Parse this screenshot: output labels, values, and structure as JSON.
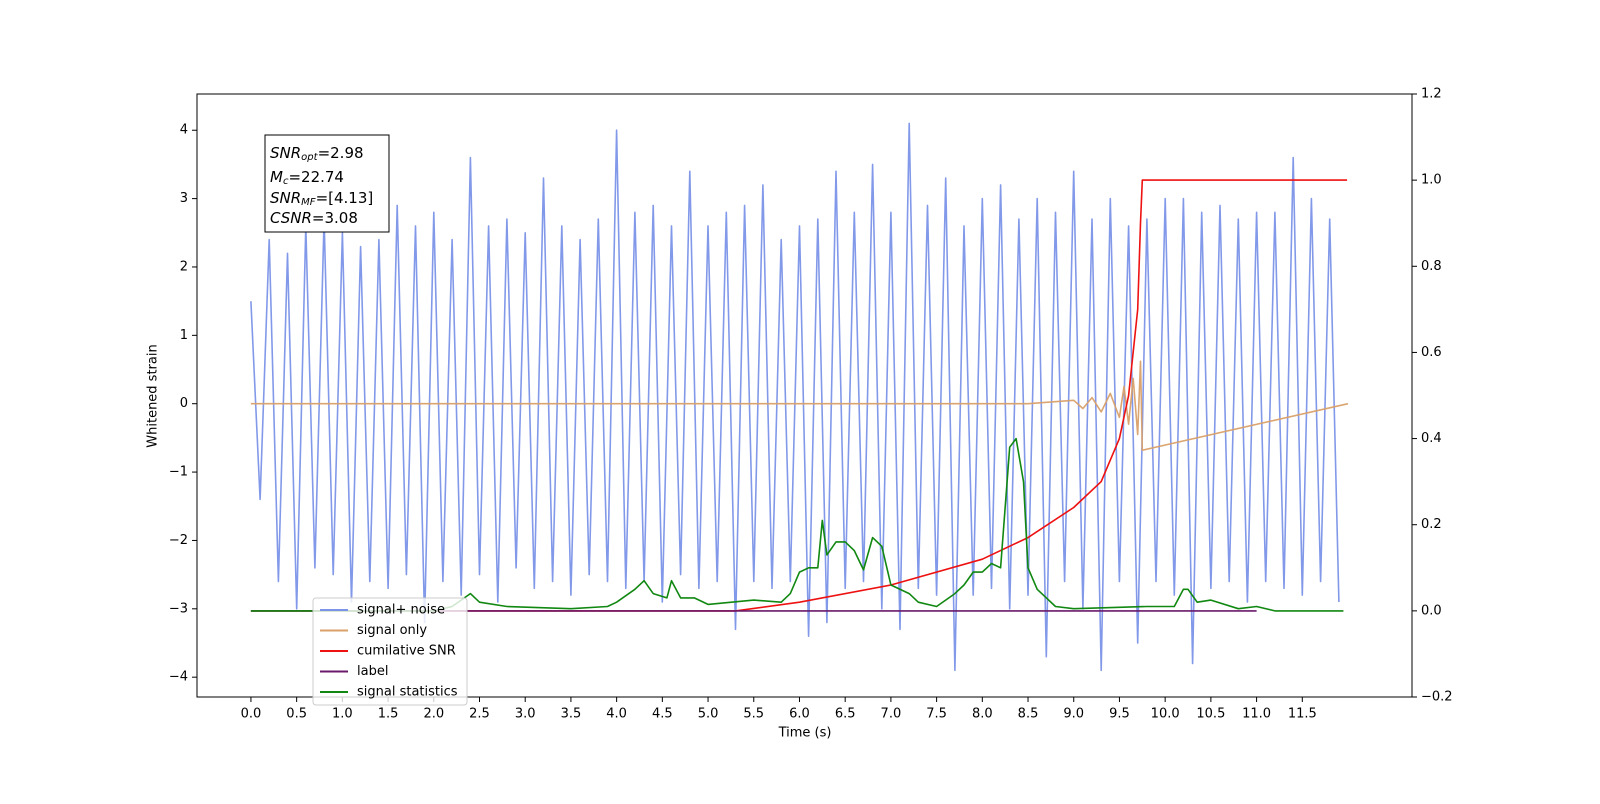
{
  "chart_data": {
    "type": "line",
    "xlabel": "Time (s)",
    "ylabel": "Whitened strain",
    "xlim": [
      -0.59,
      12.7
    ],
    "ylim": [
      -4.29,
      4.53
    ],
    "y2lim": [
      -0.2,
      1.2
    ],
    "xticks": [
      {
        "value": 0,
        "label": "0.0"
      },
      0.5,
      {
        "value": 1,
        "label": "1.0"
      },
      1.5,
      {
        "value": 2,
        "label": "2.0"
      },
      2.5,
      {
        "value": 3,
        "label": "3.0"
      },
      3.5,
      {
        "value": 4,
        "label": "4.0"
      },
      4.5,
      {
        "value": 5,
        "label": "5.0"
      },
      5.5,
      {
        "value": 6,
        "label": "6.0"
      },
      6.5,
      {
        "value": 7,
        "label": "7.0"
      },
      7.5,
      {
        "value": 8,
        "label": "8.0"
      },
      8.5,
      {
        "value": 9,
        "label": "9.0"
      },
      9.5,
      {
        "value": 10,
        "label": "10.0"
      },
      10.5,
      {
        "value": 11,
        "label": "11.0"
      },
      11.5
    ],
    "yticks": [
      {
        "value": -4,
        "label": "−4"
      },
      {
        "value": -3,
        "label": "−3"
      },
      {
        "value": -2,
        "label": "−2"
      },
      {
        "value": -1,
        "label": "−1"
      },
      0,
      1,
      2,
      3,
      4
    ],
    "y2ticks": [
      {
        "value": -0.2,
        "label": "−0.2"
      },
      {
        "value": 0,
        "label": "0.0"
      },
      0.2,
      0.4,
      0.6,
      0.8,
      {
        "value": 1,
        "label": "1.0"
      },
      1.2
    ],
    "legend_position": "lower left",
    "annotation_lines": [
      {
        "text": "SNR",
        "sub": "opt",
        "value": "=2.98"
      },
      {
        "text": "M",
        "sub": "c",
        "value": "=22.74"
      },
      {
        "text": "SNR",
        "sub": "MF",
        "value": "=[4.13]"
      },
      {
        "text": "CSNR",
        "value": "=3.08"
      }
    ],
    "series": [
      {
        "name": "signal+ noise",
        "color": "#7b94e8",
        "x": [
          0.0,
          0.1,
          0.2,
          0.3,
          0.4,
          0.5,
          0.6,
          0.7,
          0.8,
          0.9,
          1.0,
          1.1,
          1.2,
          1.3,
          1.4,
          1.5,
          1.6,
          1.7,
          1.8,
          1.9,
          2.0,
          2.1,
          2.2,
          2.3,
          2.4,
          2.5,
          2.6,
          2.7,
          2.8,
          2.9,
          3.0,
          3.1,
          3.2,
          3.3,
          3.4,
          3.5,
          3.6,
          3.7,
          3.8,
          3.9,
          4.0,
          4.1,
          4.2,
          4.3,
          4.4,
          4.5,
          4.6,
          4.7,
          4.8,
          4.9,
          5.0,
          5.1,
          5.2,
          5.3,
          5.4,
          5.5,
          5.6,
          5.7,
          5.8,
          5.9,
          6.0,
          6.1,
          6.2,
          6.3,
          6.4,
          6.5,
          6.6,
          6.7,
          6.8,
          6.9,
          7.0,
          7.1,
          7.2,
          7.3,
          7.4,
          7.5,
          7.6,
          7.7,
          7.8,
          7.9,
          8.0,
          8.1,
          8.2,
          8.3,
          8.4,
          8.5,
          8.6,
          8.7,
          8.8,
          8.9,
          9.0,
          9.1,
          9.2,
          9.3,
          9.4,
          9.5,
          9.6,
          9.7,
          9.8,
          9.9,
          10.0,
          10.1,
          10.2,
          10.3,
          10.4,
          10.5,
          10.6,
          10.7,
          10.8,
          10.9,
          11.0,
          11.1,
          11.2,
          11.3,
          11.4,
          11.5,
          11.6,
          11.7,
          11.8,
          11.9
        ],
        "values": [
          1.5,
          -1.4,
          2.4,
          -2.6,
          2.2,
          -3.0,
          2.6,
          -2.4,
          2.7,
          -2.5,
          2.5,
          -2.9,
          2.3,
          -2.6,
          2.4,
          -2.7,
          2.9,
          -2.5,
          2.6,
          -3.2,
          2.8,
          -2.6,
          2.4,
          -2.8,
          3.6,
          -2.5,
          2.6,
          -2.9,
          2.7,
          -2.4,
          2.5,
          -2.7,
          3.3,
          -2.6,
          2.6,
          -2.8,
          2.4,
          -2.5,
          2.7,
          -2.6,
          4.0,
          -2.7,
          2.8,
          -2.6,
          2.9,
          -2.9,
          2.6,
          -2.5,
          3.4,
          -2.7,
          2.6,
          -2.6,
          2.8,
          -3.3,
          2.9,
          -2.6,
          3.2,
          -2.7,
          2.4,
          -2.6,
          2.6,
          -3.4,
          2.7,
          -3.2,
          3.4,
          -2.7,
          2.8,
          -2.6,
          3.5,
          -3.0,
          2.8,
          -3.3,
          4.1,
          -2.7,
          2.9,
          -2.8,
          3.3,
          -3.9,
          2.6,
          -2.8,
          3.0,
          -2.7,
          3.2,
          -3.0,
          2.7,
          -2.8,
          3.0,
          -3.7,
          2.8,
          -2.6,
          3.4,
          -3.0,
          2.7,
          -3.9,
          3.0,
          -2.6,
          2.6,
          -3.5,
          2.7,
          -2.6,
          3.0,
          -2.8,
          3.0,
          -3.8,
          2.8,
          -2.7,
          2.9,
          -2.6,
          2.7,
          -2.9,
          2.8,
          -2.6,
          2.8,
          -2.7,
          3.6,
          -2.8,
          3.0,
          -2.6,
          2.7,
          -2.9
        ]
      },
      {
        "name": "signal only",
        "color": "#d9a06a",
        "x": [
          0.0,
          8.5,
          9.0,
          9.1,
          9.2,
          9.3,
          9.4,
          9.5,
          9.55,
          9.6,
          9.65,
          9.7,
          9.73,
          9.75,
          12.0
        ],
        "values": [
          0,
          0,
          0.05,
          -0.07,
          0.09,
          -0.12,
          0.15,
          -0.2,
          0.25,
          -0.3,
          0.37,
          -0.45,
          0.62,
          -0.68,
          0
        ]
      },
      {
        "name": "cumilative SNR",
        "color": "#ee1111",
        "axis": "y2",
        "x": [
          0.0,
          5.3,
          6.0,
          7.0,
          8.0,
          8.5,
          9.0,
          9.3,
          9.5,
          9.6,
          9.7,
          9.73,
          9.75,
          11.99
        ],
        "values": [
          0,
          0,
          0.02,
          0.06,
          0.12,
          0.17,
          0.24,
          0.3,
          0.4,
          0.5,
          0.7,
          0.9,
          1.0,
          1.0
        ]
      },
      {
        "name": "label",
        "color": "#6a1a6a",
        "axis": "y2",
        "x": [
          0.0,
          11.0
        ],
        "values": [
          0,
          0
        ]
      },
      {
        "name": "signal statistics",
        "color": "#118811",
        "axis": "y2",
        "x": [
          0.0,
          2.0,
          2.2,
          2.4,
          2.5,
          2.8,
          3.5,
          3.9,
          4.0,
          4.2,
          4.3,
          4.4,
          4.55,
          4.6,
          4.7,
          4.85,
          5.0,
          5.5,
          5.8,
          5.9,
          6.0,
          6.1,
          6.2,
          6.25,
          6.3,
          6.4,
          6.5,
          6.6,
          6.7,
          6.8,
          6.9,
          7.0,
          7.2,
          7.3,
          7.5,
          7.7,
          7.8,
          7.9,
          8.0,
          8.1,
          8.2,
          8.3,
          8.37,
          8.45,
          8.5,
          8.6,
          8.8,
          9.0,
          9.8,
          10.1,
          10.2,
          10.25,
          10.35,
          10.5,
          10.8,
          11.0,
          11.2,
          11.95
        ],
        "values": [
          0,
          0,
          0.01,
          0.04,
          0.02,
          0.01,
          0.005,
          0.01,
          0.02,
          0.05,
          0.07,
          0.04,
          0.03,
          0.07,
          0.03,
          0.03,
          0.015,
          0.025,
          0.02,
          0.04,
          0.09,
          0.1,
          0.1,
          0.21,
          0.13,
          0.16,
          0.16,
          0.14,
          0.095,
          0.17,
          0.15,
          0.06,
          0.04,
          0.02,
          0.01,
          0.04,
          0.06,
          0.09,
          0.09,
          0.11,
          0.1,
          0.38,
          0.4,
          0.3,
          0.1,
          0.05,
          0.01,
          0.005,
          0.01,
          0.01,
          0.05,
          0.05,
          0.02,
          0.025,
          0.005,
          0.01,
          0,
          0
        ]
      }
    ]
  }
}
